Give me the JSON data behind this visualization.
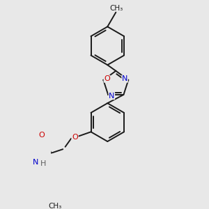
{
  "background_color": "#e8e8e8",
  "bond_color": "#1a1a1a",
  "bond_width": 1.4,
  "atom_colors": {
    "N": "#0000cc",
    "O": "#cc0000",
    "H": "#606060",
    "C": "#1a1a1a"
  },
  "font_size": 8.0,
  "fig_width": 3.0,
  "fig_height": 3.0
}
